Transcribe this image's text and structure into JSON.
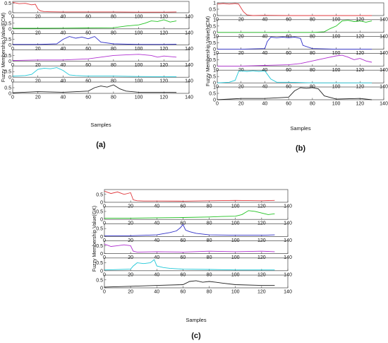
{
  "figure": {
    "colors": {
      "red": "#e0393e",
      "green": "#22c322",
      "blue": "#3030c8",
      "magenta": "#b030d0",
      "cyan": "#20c8d8",
      "black": "#222222"
    }
  },
  "chart_data": [
    {
      "type": "line",
      "panel_label": "(a)",
      "ylabel": "Fuzzy Membership Value(FCM)",
      "xlabel": "Samples",
      "xlim": [
        0,
        140
      ],
      "x_ticks": [
        "0",
        "20",
        "40",
        "60",
        "80",
        "100",
        "120",
        "140"
      ],
      "y_ticks": [
        "0",
        "0.5"
      ],
      "series": [
        {
          "color": "red",
          "ylim": [
            0,
            0.6
          ],
          "x": [
            0,
            5,
            10,
            15,
            18,
            20,
            22,
            25,
            30,
            40,
            60,
            80,
            100,
            120,
            130
          ],
          "y": [
            0.55,
            0.48,
            0.5,
            0.42,
            0.45,
            0.2,
            0.1,
            0.06,
            0.05,
            0.04,
            0.04,
            0.04,
            0.03,
            0.03,
            0.04
          ]
        },
        {
          "color": "green",
          "ylim": [
            0,
            1
          ],
          "x": [
            0,
            20,
            40,
            60,
            80,
            90,
            100,
            105,
            110,
            115,
            120,
            125,
            130
          ],
          "y": [
            0.05,
            0.05,
            0.06,
            0.08,
            0.1,
            0.25,
            0.35,
            0.5,
            0.7,
            0.65,
            0.8,
            0.6,
            0.7
          ]
        },
        {
          "color": "blue",
          "ylim": [
            0,
            1
          ],
          "x": [
            0,
            20,
            35,
            40,
            45,
            50,
            55,
            60,
            65,
            70,
            80,
            100,
            120,
            130
          ],
          "y": [
            0.05,
            0.05,
            0.1,
            0.5,
            0.75,
            0.6,
            0.7,
            0.55,
            0.75,
            0.25,
            0.1,
            0.05,
            0.05,
            0.06
          ]
        },
        {
          "color": "magenta",
          "ylim": [
            0,
            1
          ],
          "x": [
            0,
            20,
            40,
            60,
            70,
            80,
            90,
            100,
            110,
            115,
            120,
            130
          ],
          "y": [
            0.05,
            0.1,
            0.1,
            0.2,
            0.35,
            0.5,
            0.55,
            0.6,
            0.5,
            0.35,
            0.45,
            0.35
          ]
        },
        {
          "color": "cyan",
          "ylim": [
            0,
            1
          ],
          "x": [
            0,
            10,
            15,
            20,
            25,
            30,
            35,
            40,
            45,
            50,
            60,
            80,
            100,
            120,
            130
          ],
          "y": [
            0.1,
            0.15,
            0.25,
            0.7,
            0.8,
            0.75,
            0.85,
            0.6,
            0.2,
            0.15,
            0.1,
            0.1,
            0.06,
            0.05,
            0.05
          ]
        },
        {
          "color": "black",
          "ylim": [
            0,
            1
          ],
          "x": [
            0,
            20,
            40,
            60,
            65,
            70,
            75,
            80,
            85,
            90,
            100,
            120,
            130
          ],
          "y": [
            0.05,
            0.15,
            0.1,
            0.2,
            0.5,
            0.65,
            0.55,
            0.75,
            0.4,
            0.2,
            0.1,
            0.1,
            0.08
          ]
        }
      ]
    },
    {
      "type": "line",
      "panel_label": "(b)",
      "ylabel": "Fuzzy Membership Value(HCM)",
      "xlabel": "Samples",
      "xlim": [
        0,
        140
      ],
      "x_ticks": [
        "0",
        "20",
        "40",
        "60",
        "80",
        "100",
        "120",
        "140"
      ],
      "y_ticks": [
        "0",
        "0.5",
        "1"
      ],
      "series": [
        {
          "color": "red",
          "ylim": [
            0,
            1
          ],
          "x": [
            0,
            5,
            10,
            15,
            18,
            20,
            22,
            25,
            30,
            40,
            60,
            80,
            100,
            120,
            130
          ],
          "y": [
            0.9,
            0.95,
            0.9,
            0.95,
            0.9,
            0.6,
            0.3,
            0.05,
            0.0,
            0.02,
            0.0,
            0.0,
            0.0,
            0.0,
            0.0
          ]
        },
        {
          "color": "green",
          "ylim": [
            0,
            1
          ],
          "x": [
            0,
            20,
            40,
            60,
            80,
            90,
            95,
            100,
            105,
            110,
            115,
            120,
            125,
            130
          ],
          "y": [
            0.0,
            0.0,
            0.0,
            0.0,
            0.0,
            0.05,
            0.3,
            0.5,
            0.9,
            0.95,
            0.85,
            0.9,
            0.8,
            0.9
          ]
        },
        {
          "color": "blue",
          "ylim": [
            0,
            1
          ],
          "x": [
            0,
            20,
            40,
            42,
            45,
            50,
            55,
            60,
            65,
            70,
            72,
            80,
            100,
            130
          ],
          "y": [
            0.0,
            0.0,
            0.05,
            0.6,
            0.95,
            0.9,
            0.95,
            0.9,
            0.95,
            0.85,
            0.3,
            0.05,
            0.0,
            0.0
          ]
        },
        {
          "color": "magenta",
          "ylim": [
            0,
            1
          ],
          "x": [
            0,
            20,
            40,
            60,
            70,
            80,
            90,
            100,
            105,
            110,
            115,
            120,
            125,
            130
          ],
          "y": [
            0.0,
            0.0,
            0.05,
            0.1,
            0.2,
            0.4,
            0.6,
            0.8,
            0.85,
            0.7,
            0.5,
            0.6,
            0.4,
            0.3
          ]
        },
        {
          "color": "cyan",
          "ylim": [
            0,
            1
          ],
          "x": [
            0,
            10,
            15,
            18,
            20,
            25,
            30,
            35,
            40,
            45,
            50,
            60,
            80,
            100,
            130
          ],
          "y": [
            0.0,
            0.05,
            0.2,
            0.9,
            0.95,
            0.9,
            0.95,
            0.9,
            0.95,
            0.3,
            0.05,
            0.05,
            0.0,
            0.0,
            0.0
          ]
        },
        {
          "color": "black",
          "ylim": [
            0,
            1
          ],
          "x": [
            0,
            20,
            40,
            60,
            65,
            70,
            75,
            80,
            85,
            90,
            100,
            120,
            130
          ],
          "y": [
            0.0,
            0.1,
            0.1,
            0.2,
            0.7,
            0.95,
            0.9,
            0.95,
            0.85,
            0.3,
            0.05,
            0.1,
            0.0
          ]
        }
      ]
    },
    {
      "type": "line",
      "panel_label": "(c)",
      "ylabel": "Fuzzy Membership Value(GK)",
      "xlabel": "Samples",
      "xlim": [
        0,
        140
      ],
      "x_ticks": [
        "0",
        "20",
        "40",
        "60",
        "80",
        "100",
        "120",
        "140"
      ],
      "y_ticks": [
        "0",
        "0.5"
      ],
      "series": [
        {
          "color": "red",
          "ylim": [
            0,
            0.8
          ],
          "x": [
            0,
            5,
            10,
            15,
            20,
            22,
            25,
            30,
            40,
            60,
            80,
            100,
            120,
            130
          ],
          "y": [
            0.7,
            0.55,
            0.65,
            0.5,
            0.6,
            0.15,
            0.1,
            0.08,
            0.08,
            0.07,
            0.1,
            0.12,
            0.1,
            0.12
          ]
        },
        {
          "color": "green",
          "ylim": [
            0,
            0.8
          ],
          "x": [
            0,
            20,
            40,
            60,
            80,
            90,
            100,
            105,
            110,
            115,
            120,
            125,
            130
          ],
          "y": [
            0.08,
            0.08,
            0.1,
            0.12,
            0.15,
            0.18,
            0.2,
            0.3,
            0.55,
            0.5,
            0.4,
            0.3,
            0.35
          ]
        },
        {
          "color": "blue",
          "ylim": [
            0,
            0.8
          ],
          "x": [
            0,
            20,
            40,
            50,
            55,
            58,
            60,
            62,
            65,
            70,
            80,
            100,
            120,
            130
          ],
          "y": [
            0.05,
            0.05,
            0.1,
            0.25,
            0.35,
            0.55,
            0.75,
            0.4,
            0.3,
            0.2,
            0.1,
            0.08,
            0.08,
            0.1
          ]
        },
        {
          "color": "magenta",
          "ylim": [
            0,
            0.8
          ],
          "x": [
            0,
            5,
            10,
            15,
            20,
            22,
            25,
            40,
            60,
            80,
            100,
            120,
            130
          ],
          "y": [
            0.6,
            0.45,
            0.5,
            0.55,
            0.5,
            0.15,
            0.1,
            0.12,
            0.1,
            0.15,
            0.12,
            0.15,
            0.12
          ]
        },
        {
          "color": "cyan",
          "ylim": [
            0,
            0.8
          ],
          "x": [
            0,
            20,
            22,
            25,
            30,
            35,
            38,
            40,
            45,
            50,
            60,
            80,
            100,
            120,
            130
          ],
          "y": [
            0.05,
            0.1,
            0.3,
            0.5,
            0.45,
            0.5,
            0.7,
            0.3,
            0.2,
            0.15,
            0.1,
            0.08,
            0.05,
            0.05,
            0.05
          ]
        },
        {
          "color": "black",
          "ylim": [
            0,
            0.8
          ],
          "x": [
            0,
            20,
            40,
            60,
            65,
            70,
            75,
            80,
            85,
            90,
            100,
            120,
            130
          ],
          "y": [
            0.05,
            0.1,
            0.15,
            0.2,
            0.4,
            0.45,
            0.35,
            0.4,
            0.35,
            0.3,
            0.2,
            0.15,
            0.15
          ]
        }
      ]
    }
  ]
}
